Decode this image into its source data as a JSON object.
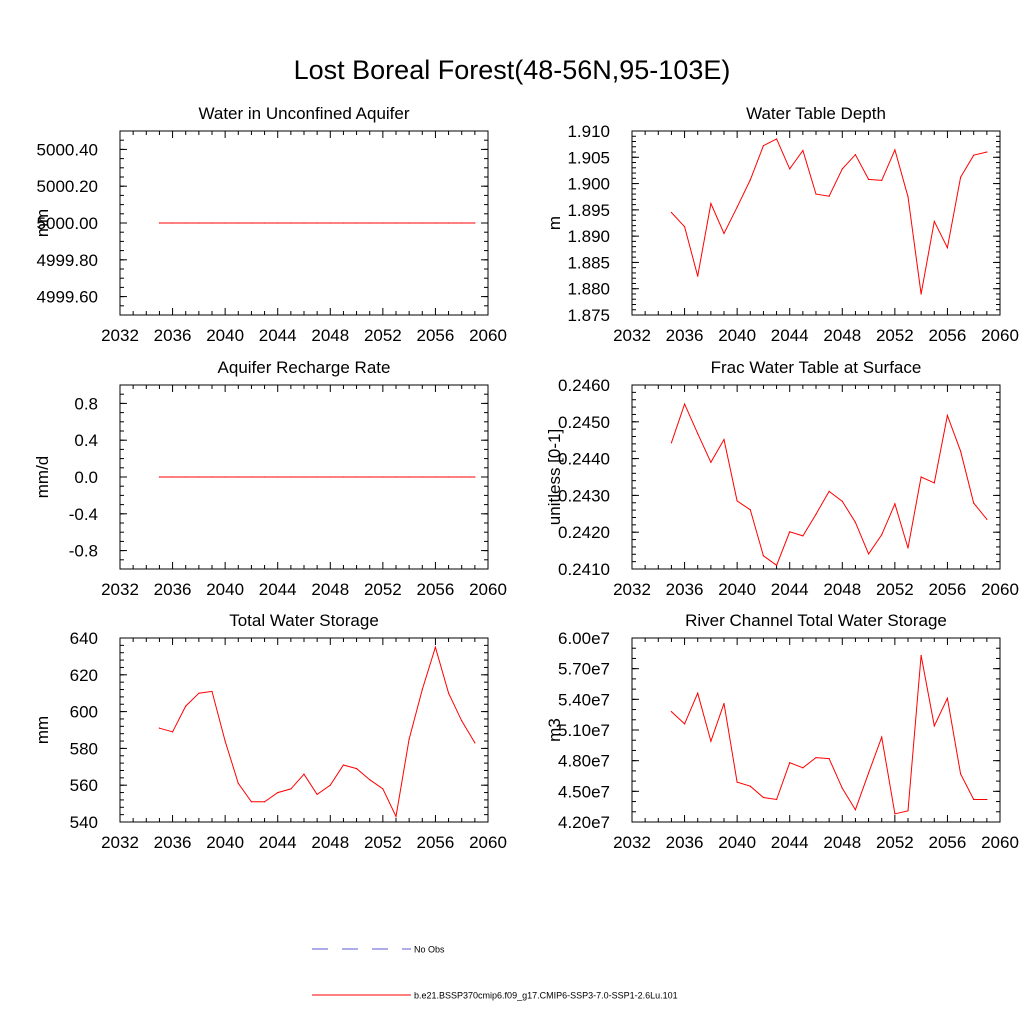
{
  "figure": {
    "title": "Lost Boreal Forest(48-56N,95-103E)"
  },
  "legend": {
    "entries": [
      {
        "label": "No Obs",
        "color": "#5b5bd6",
        "style": "dashed"
      },
      {
        "label": "b.e21.BSSP370cmip6.f09_g17.CMIP6-SSP3-7.0-SSP1-2.6Lu.101",
        "color": "#ff0000",
        "style": "solid"
      }
    ]
  },
  "chart_data": [
    {
      "type": "line",
      "title": "Water in Unconfined Aquifer",
      "xlabel": "",
      "ylabel": "mm",
      "xlim": [
        2032,
        2060
      ],
      "ylim": [
        4999.5,
        5000.5
      ],
      "xticks": [
        "2032",
        "2036",
        "2040",
        "2044",
        "2048",
        "2052",
        "2056",
        "2060"
      ],
      "yticks": [
        {
          "v": 4999.6,
          "label": "4999.60"
        },
        {
          "v": 4999.8,
          "label": "4999.80"
        },
        {
          "v": 5000.0,
          "label": "5000.00"
        },
        {
          "v": 5000.2,
          "label": "5000.20"
        },
        {
          "v": 5000.4,
          "label": "5000.40"
        }
      ],
      "yminor": 0.05,
      "series": [
        {
          "color": "#ff0000",
          "x": [
            2035,
            2036,
            2037,
            2038,
            2039,
            2040,
            2041,
            2042,
            2043,
            2044,
            2045,
            2046,
            2047,
            2048,
            2049,
            2050,
            2051,
            2052,
            2053,
            2054,
            2055,
            2056,
            2057,
            2058,
            2059
          ],
          "values": [
            5000,
            5000,
            5000,
            5000,
            5000,
            5000,
            5000,
            5000,
            5000,
            5000,
            5000,
            5000,
            5000,
            5000,
            5000,
            5000,
            5000,
            5000,
            5000,
            5000,
            5000,
            5000,
            5000,
            5000,
            5000
          ]
        }
      ]
    },
    {
      "type": "line",
      "title": "Water Table Depth",
      "xlabel": "",
      "ylabel": "m",
      "xlim": [
        2032,
        2060
      ],
      "ylim": [
        1.875,
        1.91
      ],
      "xticks": [
        "2032",
        "2036",
        "2040",
        "2044",
        "2048",
        "2052",
        "2056",
        "2060"
      ],
      "yticks": [
        {
          "v": 1.875,
          "label": "1.875"
        },
        {
          "v": 1.88,
          "label": "1.880"
        },
        {
          "v": 1.885,
          "label": "1.885"
        },
        {
          "v": 1.89,
          "label": "1.890"
        },
        {
          "v": 1.895,
          "label": "1.895"
        },
        {
          "v": 1.9,
          "label": "1.900"
        },
        {
          "v": 1.905,
          "label": "1.905"
        },
        {
          "v": 1.91,
          "label": "1.910"
        }
      ],
      "yminor": 0.001,
      "series": [
        {
          "color": "#ff0000",
          "x": [
            2035,
            2036,
            2037,
            2038,
            2039,
            2040,
            2041,
            2042,
            2043,
            2044,
            2045,
            2046,
            2047,
            2048,
            2049,
            2050,
            2051,
            2052,
            2053,
            2054,
            2055,
            2056,
            2057,
            2058,
            2059
          ],
          "values": [
            1.8945,
            1.8918,
            1.8824,
            1.8962,
            1.8905,
            1.8955,
            1.9007,
            1.9072,
            1.9085,
            1.9028,
            1.9063,
            1.898,
            1.8976,
            1.9028,
            1.9055,
            1.9008,
            1.9006,
            1.9064,
            1.8975,
            1.879,
            1.8928,
            1.8878,
            1.9012,
            1.9054,
            1.906
          ]
        }
      ]
    },
    {
      "type": "line",
      "title": "Aquifer Recharge Rate",
      "xlabel": "",
      "ylabel": "mm/d",
      "xlim": [
        2032,
        2060
      ],
      "ylim": [
        -1,
        1
      ],
      "xticks": [
        "2032",
        "2036",
        "2040",
        "2044",
        "2048",
        "2052",
        "2056",
        "2060"
      ],
      "yticks": [
        {
          "v": -0.8,
          "label": "-0.8"
        },
        {
          "v": -0.4,
          "label": "-0.4"
        },
        {
          "v": 0.0,
          "label": "0.0"
        },
        {
          "v": 0.4,
          "label": "0.4"
        },
        {
          "v": 0.8,
          "label": "0.8"
        }
      ],
      "yminor": 0.1,
      "series": [
        {
          "color": "#ff0000",
          "x": [
            2035,
            2036,
            2037,
            2038,
            2039,
            2040,
            2041,
            2042,
            2043,
            2044,
            2045,
            2046,
            2047,
            2048,
            2049,
            2050,
            2051,
            2052,
            2053,
            2054,
            2055,
            2056,
            2057,
            2058,
            2059
          ],
          "values": [
            0,
            0,
            0,
            0,
            0,
            0,
            0,
            0,
            0,
            0,
            0,
            0,
            0,
            0,
            0,
            0,
            0,
            0,
            0,
            0,
            0,
            0,
            0,
            0,
            0
          ]
        }
      ]
    },
    {
      "type": "line",
      "title": "Frac Water Table at Surface",
      "xlabel": "",
      "ylabel": "unitless [0-1]",
      "xlim": [
        2032,
        2060
      ],
      "ylim": [
        0.241,
        0.246
      ],
      "xticks": [
        "2032",
        "2036",
        "2040",
        "2044",
        "2048",
        "2052",
        "2056",
        "2060"
      ],
      "yticks": [
        {
          "v": 0.241,
          "label": "0.2410"
        },
        {
          "v": 0.242,
          "label": "0.2420"
        },
        {
          "v": 0.243,
          "label": "0.2430"
        },
        {
          "v": 0.244,
          "label": "0.2440"
        },
        {
          "v": 0.245,
          "label": "0.2450"
        },
        {
          "v": 0.246,
          "label": "0.2460"
        }
      ],
      "yminor": 0.0002,
      "series": [
        {
          "color": "#ff0000",
          "x": [
            2035,
            2036,
            2037,
            2038,
            2039,
            2040,
            2041,
            2042,
            2043,
            2044,
            2045,
            2046,
            2047,
            2048,
            2049,
            2050,
            2051,
            2052,
            2053,
            2054,
            2055,
            2056,
            2057,
            2058,
            2059
          ],
          "values": [
            0.24443,
            0.24548,
            0.24468,
            0.2439,
            0.24452,
            0.24285,
            0.24261,
            0.24136,
            0.2411,
            0.24201,
            0.2419,
            0.24249,
            0.24311,
            0.24284,
            0.24227,
            0.24141,
            0.24193,
            0.24277,
            0.24157,
            0.2435,
            0.24334,
            0.24517,
            0.2442,
            0.24279,
            0.24235
          ]
        }
      ]
    },
    {
      "type": "line",
      "title": "Total Water Storage",
      "xlabel": "",
      "ylabel": "mm",
      "xlim": [
        2032,
        2060
      ],
      "ylim": [
        540,
        640
      ],
      "xticks": [
        "2032",
        "2036",
        "2040",
        "2044",
        "2048",
        "2052",
        "2056",
        "2060"
      ],
      "yticks": [
        {
          "v": 540,
          "label": "540"
        },
        {
          "v": 560,
          "label": "560"
        },
        {
          "v": 580,
          "label": "580"
        },
        {
          "v": 600,
          "label": "600"
        },
        {
          "v": 620,
          "label": "620"
        },
        {
          "v": 640,
          "label": "640"
        }
      ],
      "yminor": 4,
      "series": [
        {
          "color": "#ff0000",
          "x": [
            2035,
            2036,
            2037,
            2038,
            2039,
            2040,
            2041,
            2042,
            2043,
            2044,
            2045,
            2046,
            2047,
            2048,
            2049,
            2050,
            2051,
            2052,
            2053,
            2054,
            2055,
            2056,
            2057,
            2058,
            2059
          ],
          "values": [
            591,
            589,
            603,
            610,
            611,
            584,
            561,
            551,
            551,
            556,
            558,
            566,
            555,
            560,
            571,
            569,
            563,
            558,
            543,
            585,
            612,
            635,
            610,
            595,
            583
          ]
        }
      ]
    },
    {
      "type": "line",
      "title": "River Channel Total Water Storage",
      "xlabel": "",
      "ylabel": "m3",
      "xlim": [
        2032,
        2060
      ],
      "ylim": [
        42000000,
        60000000
      ],
      "xticks": [
        "2032",
        "2036",
        "2040",
        "2044",
        "2048",
        "2052",
        "2056",
        "2060"
      ],
      "yticks": [
        {
          "v": 42000000,
          "label": "4.20e7"
        },
        {
          "v": 45000000,
          "label": "4.50e7"
        },
        {
          "v": 48000000,
          "label": "4.80e7"
        },
        {
          "v": 51000000,
          "label": "5.10e7"
        },
        {
          "v": 54000000,
          "label": "5.40e7"
        },
        {
          "v": 57000000,
          "label": "5.70e7"
        },
        {
          "v": 60000000,
          "label": "6.00e7"
        }
      ],
      "yminor": 1000000,
      "series": [
        {
          "color": "#ff0000",
          "x": [
            2035,
            2036,
            2037,
            2038,
            2039,
            2040,
            2041,
            2042,
            2043,
            2044,
            2045,
            2046,
            2047,
            2048,
            2049,
            2050,
            2051,
            2052,
            2053,
            2054,
            2055,
            2056,
            2057,
            2058,
            2059
          ],
          "values": [
            52800000,
            51600000,
            54600000,
            49900000,
            53600000,
            45900000,
            45500000,
            44400000,
            44200000,
            47800000,
            47300000,
            48300000,
            48200000,
            45300000,
            43200000,
            46800000,
            50300000,
            42800000,
            43100000,
            58300000,
            51400000,
            54100000,
            46700000,
            44200000,
            44200000
          ]
        }
      ]
    }
  ]
}
